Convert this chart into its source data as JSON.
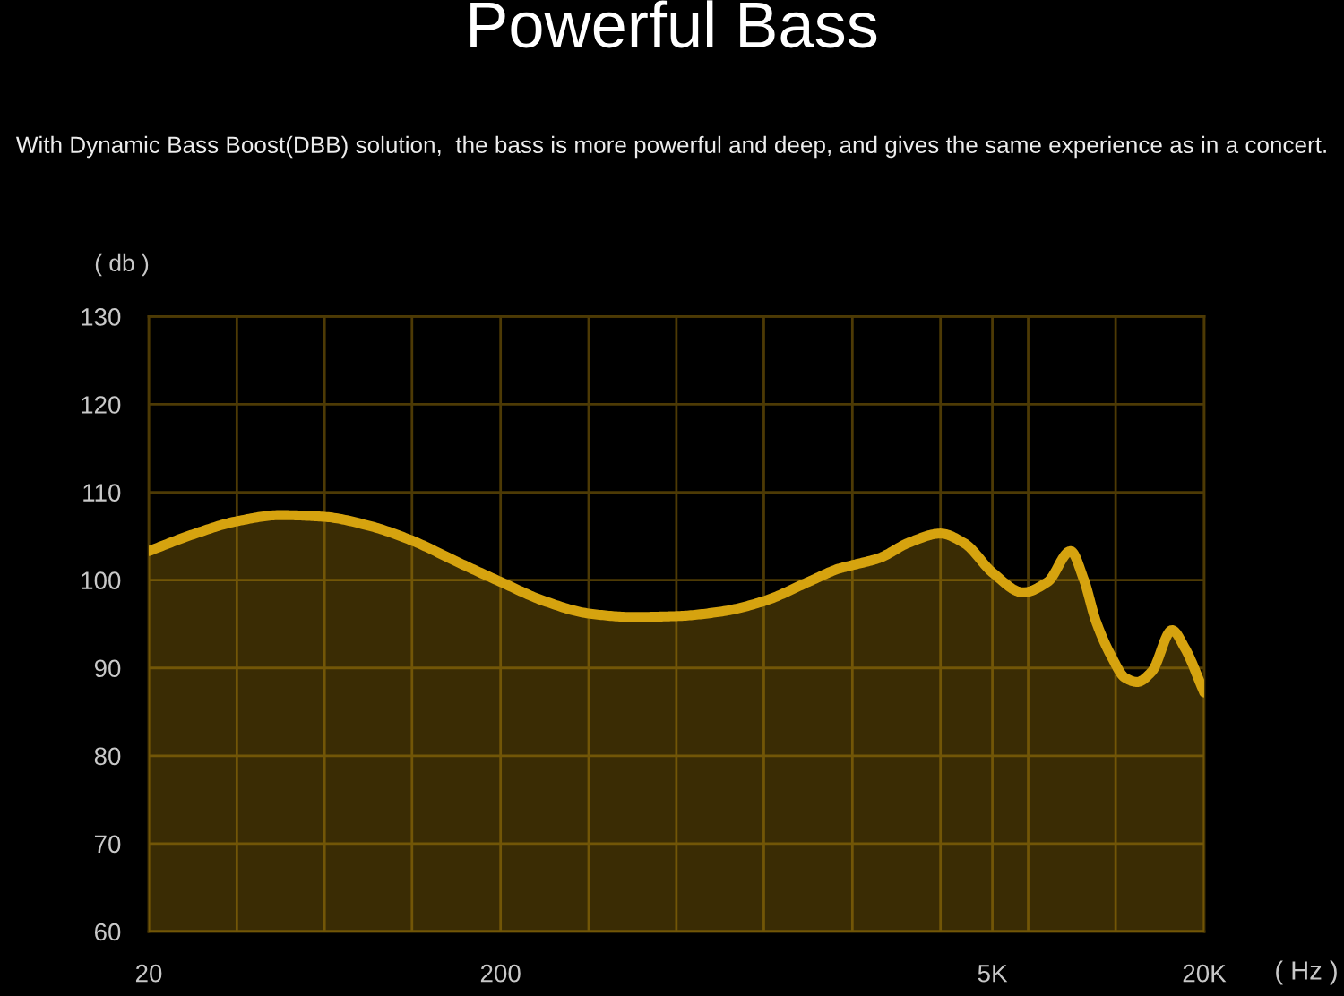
{
  "chart_data": {
    "type": "area",
    "title": "Powerful Bass",
    "subtitle": "With Dynamic Bass Boost(DBB) solution,  the bass is more powerful and deep, and gives the same experience as in a concert.",
    "xlabel": "( Hz )",
    "ylabel": "( db )",
    "x": [
      20,
      26.7,
      35.6,
      47.4,
      63.2,
      84.3,
      112,
      150,
      200,
      267,
      356,
      474,
      632,
      843,
      1120,
      1500,
      1830,
      2000,
      2380,
      2910,
      3560,
      4160,
      5020,
      6110,
      7180,
      8340,
      9090,
      9850,
      10900,
      11900,
      12900,
      14200,
      16200,
      17600,
      20000
    ],
    "values": [
      103.3,
      105.2,
      106.7,
      107.4,
      107.2,
      106.2,
      104.5,
      102.1,
      99.8,
      97.6,
      96.2,
      95.8,
      95.9,
      96.4,
      97.6,
      99.8,
      101.3,
      101.7,
      102.5,
      104.3,
      105.3,
      104.2,
      100.8,
      98.6,
      99.8,
      103.3,
      100.1,
      95.3,
      91.3,
      88.9,
      88.4,
      89.6,
      94.3,
      92.3,
      87.2
    ],
    "color": "#d6a30f",
    "log": "x",
    "xlim": [
      20,
      20000
    ],
    "xticks": [
      20,
      {
        "value": 35.6,
        "label": null
      },
      {
        "value": 63.2,
        "label": null
      },
      {
        "value": 112,
        "label": null
      },
      200,
      {
        "value": 356,
        "label": null
      },
      {
        "value": 632,
        "label": null
      },
      {
        "value": 1120,
        "label": null
      },
      {
        "value": 2000,
        "label": null
      },
      {
        "value": 3560,
        "label": null
      },
      {
        "value": 5000,
        "label": "5K"
      },
      {
        "value": 6320,
        "label": null
      },
      {
        "value": 11200,
        "label": null
      },
      {
        "value": 20000,
        "label": "20K"
      }
    ],
    "ylim": [
      60,
      130
    ],
    "yticks": [
      60,
      70,
      80,
      90,
      100,
      110,
      120,
      130
    ],
    "grid": true
  }
}
